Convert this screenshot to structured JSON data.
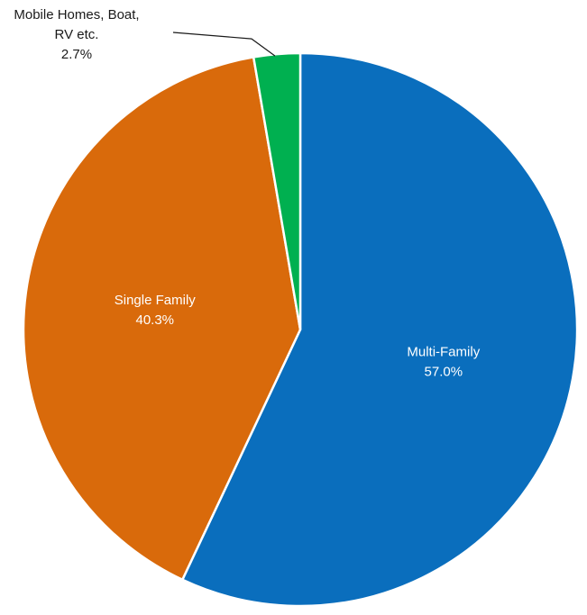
{
  "chart_data": {
    "type": "pie",
    "categories": [
      "Multi-Family",
      "Single Family",
      "Mobile Homes, Boat, RV etc."
    ],
    "values": [
      57.0,
      40.3,
      2.7
    ],
    "value_labels": [
      "57.0%",
      "40.3%",
      "2.7%"
    ],
    "label_lines": [
      [
        "Multi-Family"
      ],
      [
        "Single Family"
      ],
      [
        "Mobile Homes, Boat,",
        "RV etc."
      ]
    ],
    "colors": [
      "#0A6EBD",
      "#D96A0B",
      "#00B050"
    ],
    "start": "12 o'clock",
    "direction": "clockwise",
    "labels_inside": [
      true,
      true,
      false
    ],
    "title": "",
    "legend": "none"
  }
}
